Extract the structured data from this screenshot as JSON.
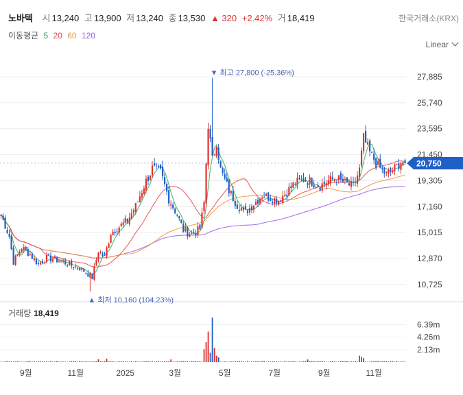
{
  "header": {
    "name": "노바텍",
    "open_label": "시",
    "open": "13,240",
    "high_label": "고",
    "high": "13,900",
    "low_label": "저",
    "low": "13,240",
    "close_label": "종",
    "close": "13,530",
    "change": "▲ 320",
    "change_pct": "+2.42%",
    "volume_label": "거",
    "volume": "18,419",
    "exchange": "한국거래소(KRX)"
  },
  "ma_legend": {
    "label": "이동평균",
    "periods": [
      "5",
      "20",
      "60",
      "120"
    ],
    "colors": [
      "#2dad5a",
      "#e5484d",
      "#f0913c",
      "#9b5de5"
    ]
  },
  "scale_menu": {
    "value": "Linear",
    "icon": "chevron-down-icon"
  },
  "volume_panel": {
    "label": "거래량",
    "value": "18,419"
  },
  "colors": {
    "up": "#e0312f",
    "down": "#1f5fc8",
    "price_tag": "#1f5fc8"
  },
  "chart_data": {
    "type": "candlestick",
    "price_ticks": [
      "27,885",
      "25,740",
      "23,595",
      "21,450",
      "19,305",
      "17,160",
      "15,015",
      "12,870",
      "10,725"
    ],
    "price_tick_values": [
      27885,
      25740,
      23595,
      21450,
      19305,
      17160,
      15015,
      12870,
      10725
    ],
    "ylim": [
      9300,
      29700
    ],
    "volume_ticks": [
      "6.39m",
      "4.26m",
      "2.13m"
    ],
    "volume_tick_values": [
      6.39,
      4.26,
      2.13
    ],
    "volume_ylim": [
      0,
      8.2
    ],
    "x_ticks": [
      "9월",
      "11월",
      "2025",
      "3월",
      "5월",
      "7월",
      "9월",
      "11월"
    ],
    "x_tick_bar_index": [
      12,
      36,
      60,
      84,
      108,
      132,
      156,
      180
    ],
    "bar_count": 196,
    "current_price": "20,750",
    "current_price_value": 20750,
    "high_annotation": "▼ 최고 27,800 (-25.36%)",
    "high_bar_index": 102,
    "high_value": 27800,
    "low_annotation": "▲ 최저 10,160 (104.23%)",
    "low_bar_index": 43,
    "low_value": 10160,
    "close_anchors": [
      [
        0,
        16500
      ],
      [
        4,
        14700
      ],
      [
        6,
        12600
      ],
      [
        10,
        13800
      ],
      [
        14,
        13200
      ],
      [
        18,
        12400
      ],
      [
        22,
        12900
      ],
      [
        26,
        12800
      ],
      [
        30,
        12600
      ],
      [
        34,
        12300
      ],
      [
        38,
        12100
      ],
      [
        42,
        11600
      ],
      [
        44,
        11300
      ],
      [
        47,
        13500
      ],
      [
        50,
        13000
      ],
      [
        53,
        15000
      ],
      [
        57,
        15500
      ],
      [
        61,
        16000
      ],
      [
        65,
        17200
      ],
      [
        69,
        18900
      ],
      [
        73,
        20300
      ],
      [
        77,
        20000
      ],
      [
        81,
        17800
      ],
      [
        85,
        16500
      ],
      [
        88,
        15200
      ],
      [
        92,
        14900
      ],
      [
        96,
        15300
      ],
      [
        98,
        17500
      ],
      [
        100,
        24000
      ],
      [
        102,
        21000
      ],
      [
        104,
        22500
      ],
      [
        106,
        20200
      ],
      [
        110,
        18500
      ],
      [
        114,
        17300
      ],
      [
        118,
        16700
      ],
      [
        122,
        17400
      ],
      [
        126,
        18100
      ],
      [
        130,
        17900
      ],
      [
        134,
        17700
      ],
      [
        138,
        18400
      ],
      [
        142,
        19100
      ],
      [
        146,
        19400
      ],
      [
        150,
        19200
      ],
      [
        154,
        18900
      ],
      [
        158,
        19300
      ],
      [
        162,
        19500
      ],
      [
        166,
        19100
      ],
      [
        170,
        18800
      ],
      [
        173,
        20200
      ],
      [
        175,
        22800
      ],
      [
        178,
        21600
      ],
      [
        182,
        20500
      ],
      [
        186,
        19800
      ],
      [
        190,
        20300
      ],
      [
        193,
        20900
      ],
      [
        195,
        20750
      ]
    ],
    "volume_spikes": [
      [
        47,
        0.5
      ],
      [
        51,
        0.6
      ],
      [
        82,
        0.45
      ],
      [
        98,
        2.2
      ],
      [
        99,
        3.4
      ],
      [
        100,
        5.2
      ],
      [
        101,
        1.6
      ],
      [
        102,
        7.6
      ],
      [
        103,
        2.4
      ],
      [
        104,
        1.1
      ],
      [
        105,
        0.8
      ],
      [
        148,
        0.45
      ],
      [
        173,
        1.1
      ],
      [
        174,
        0.9
      ],
      [
        175,
        0.7
      ]
    ]
  }
}
